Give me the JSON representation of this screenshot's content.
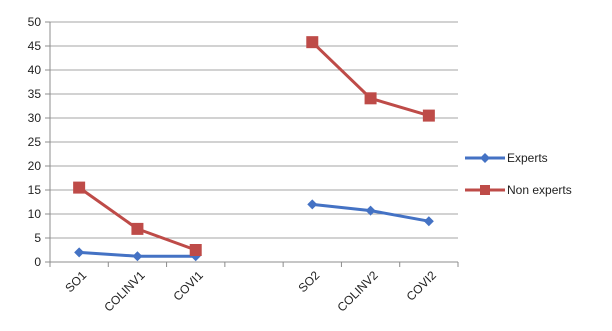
{
  "chart_data": {
    "type": "line",
    "categories": [
      "SO1",
      "COLINV1",
      "COVI1",
      "",
      "SO2",
      "COLINV2",
      "COVI2"
    ],
    "series": [
      {
        "name": "Experts",
        "color": "#4472C4",
        "marker": "diamond",
        "segments": [
          [
            {
              "x": 0,
              "y": 2
            },
            {
              "x": 1,
              "y": 1.2
            },
            {
              "x": 2,
              "y": 1.2
            }
          ],
          [
            {
              "x": 4,
              "y": 12
            },
            {
              "x": 5,
              "y": 10.7
            },
            {
              "x": 6,
              "y": 8.5
            }
          ]
        ]
      },
      {
        "name": "Non experts",
        "color": "#BE4B48",
        "marker": "square",
        "segments": [
          [
            {
              "x": 0,
              "y": 15.5
            },
            {
              "x": 1,
              "y": 6.9
            },
            {
              "x": 2,
              "y": 2.5
            }
          ],
          [
            {
              "x": 4,
              "y": 45.8
            },
            {
              "x": 5,
              "y": 34.1
            },
            {
              "x": 6,
              "y": 30.5
            }
          ]
        ]
      }
    ],
    "yticks": [
      0,
      5,
      10,
      15,
      20,
      25,
      30,
      35,
      40,
      45,
      50
    ],
    "ylim": [
      0,
      50
    ],
    "grid": true,
    "legend_position": "right",
    "title": "",
    "xlabel": "",
    "ylabel": ""
  }
}
